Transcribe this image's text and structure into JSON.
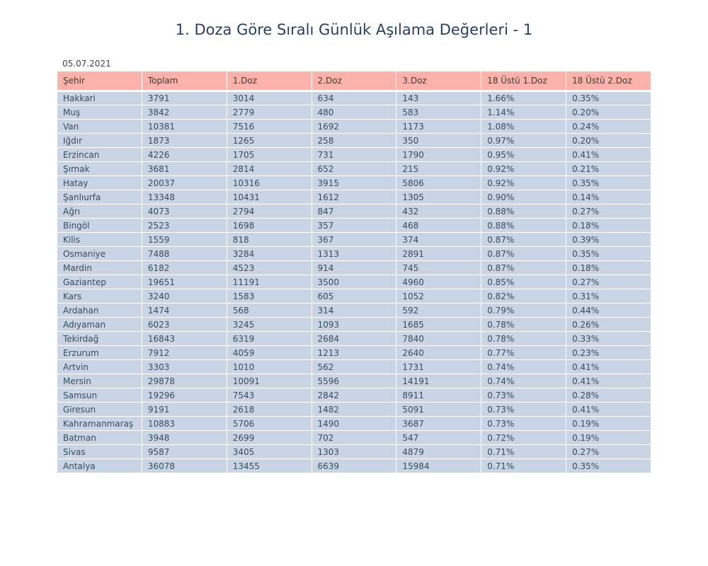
{
  "chart_data": {
    "type": "table",
    "title": "1. Doza Göre Sıralı Günlük Aşılama Değerleri - 1",
    "subtitle": "05.07.2021",
    "columns": [
      "Şehir",
      "Toplam",
      "1.Doz",
      "2.Doz",
      "3.Doz",
      "18 Üstü 1.Doz",
      "18 Üstü 2.Doz"
    ],
    "rows": [
      [
        "Hakkari",
        "3791",
        "3014",
        "634",
        "143",
        "1.66%",
        "0.35%"
      ],
      [
        "Muş",
        "3842",
        "2779",
        "480",
        "583",
        "1.14%",
        "0.20%"
      ],
      [
        "Van",
        "10381",
        "7516",
        "1692",
        "1173",
        "1.08%",
        "0.24%"
      ],
      [
        "Iğdır",
        "1873",
        "1265",
        "258",
        "350",
        "0.97%",
        "0.20%"
      ],
      [
        "Erzincan",
        "4226",
        "1705",
        "731",
        "1790",
        "0.95%",
        "0.41%"
      ],
      [
        "Şırnak",
        "3681",
        "2814",
        "652",
        "215",
        "0.92%",
        "0.21%"
      ],
      [
        "Hatay",
        "20037",
        "10316",
        "3915",
        "5806",
        "0.92%",
        "0.35%"
      ],
      [
        "Şanlıurfa",
        "13348",
        "10431",
        "1612",
        "1305",
        "0.90%",
        "0.14%"
      ],
      [
        "Ağrı",
        "4073",
        "2794",
        "847",
        "432",
        "0.88%",
        "0.27%"
      ],
      [
        "Bingöl",
        "2523",
        "1698",
        "357",
        "468",
        "0.88%",
        "0.18%"
      ],
      [
        "Kilis",
        "1559",
        "818",
        "367",
        "374",
        "0.87%",
        "0.39%"
      ],
      [
        "Osmaniye",
        "7488",
        "3284",
        "1313",
        "2891",
        "0.87%",
        "0.35%"
      ],
      [
        "Mardin",
        "6182",
        "4523",
        "914",
        "745",
        "0.87%",
        "0.18%"
      ],
      [
        "Gaziantep",
        "19651",
        "11191",
        "3500",
        "4960",
        "0.85%",
        "0.27%"
      ],
      [
        "Kars",
        "3240",
        "1583",
        "605",
        "1052",
        "0.82%",
        "0.31%"
      ],
      [
        "Ardahan",
        "1474",
        "568",
        "314",
        "592",
        "0.79%",
        "0.44%"
      ],
      [
        "Adıyaman",
        "6023",
        "3245",
        "1093",
        "1685",
        "0.78%",
        "0.26%"
      ],
      [
        "Tekirdağ",
        "16843",
        "6319",
        "2684",
        "7840",
        "0.78%",
        "0.33%"
      ],
      [
        "Erzurum",
        "7912",
        "4059",
        "1213",
        "2640",
        "0.77%",
        "0.23%"
      ],
      [
        "Artvin",
        "3303",
        "1010",
        "562",
        "1731",
        "0.74%",
        "0.41%"
      ],
      [
        "Mersin",
        "29878",
        "10091",
        "5596",
        "14191",
        "0.74%",
        "0.41%"
      ],
      [
        "Samsun",
        "19296",
        "7543",
        "2842",
        "8911",
        "0.73%",
        "0.28%"
      ],
      [
        "Giresun",
        "9191",
        "2618",
        "1482",
        "5091",
        "0.73%",
        "0.41%"
      ],
      [
        "Kahramanmaraş",
        "10883",
        "5706",
        "1490",
        "3687",
        "0.73%",
        "0.19%"
      ],
      [
        "Batman",
        "3948",
        "2699",
        "702",
        "547",
        "0.72%",
        "0.19%"
      ],
      [
        "Sivas",
        "9587",
        "3405",
        "1303",
        "4879",
        "0.71%",
        "0.27%"
      ],
      [
        "Antalya",
        "36078",
        "13455",
        "6639",
        "15984",
        "0.71%",
        "0.35%"
      ]
    ],
    "header_color": "#fab2ab",
    "cell_color": "#c9d4e5"
  }
}
